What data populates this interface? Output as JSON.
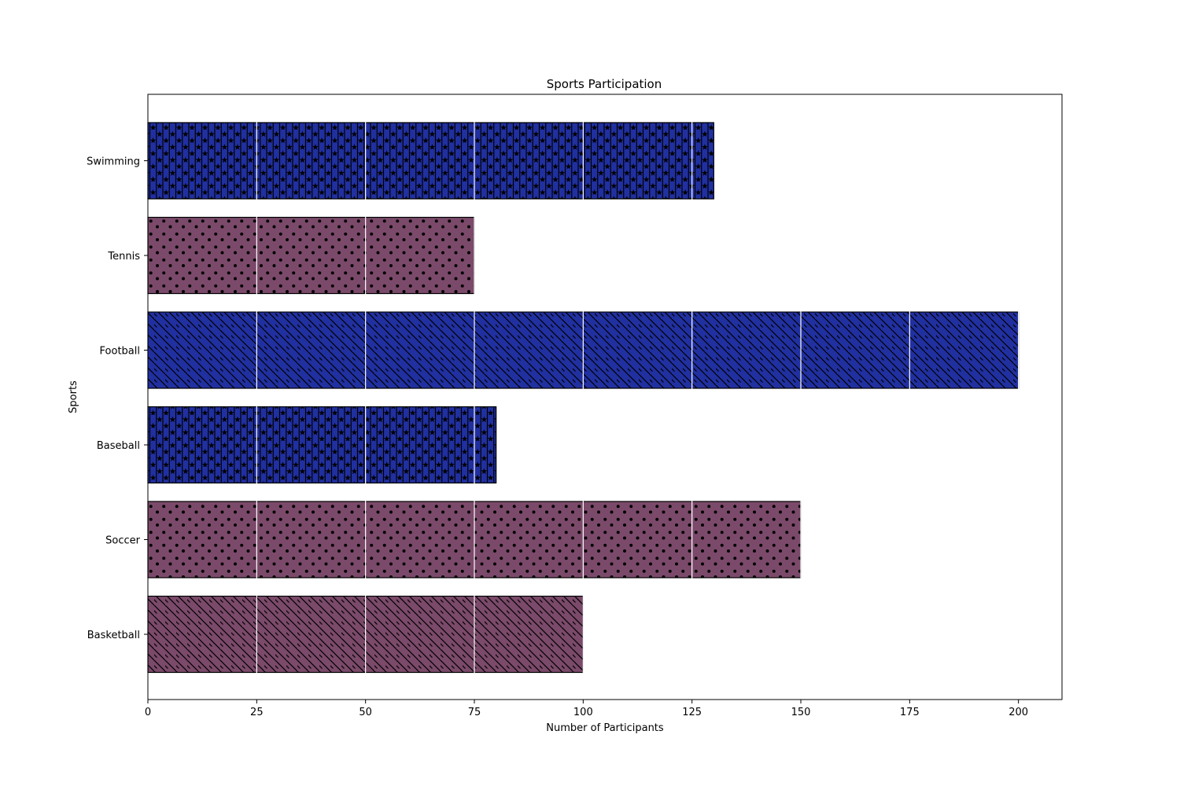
{
  "chart_data": {
    "type": "bar",
    "orientation": "horizontal",
    "title": "Sports Participation",
    "xlabel": "Number of Participants",
    "ylabel": "Sports",
    "categories": [
      "Basketball",
      "Soccer",
      "Baseball",
      "Football",
      "Tennis",
      "Swimming"
    ],
    "values": [
      100,
      150,
      80,
      200,
      75,
      130
    ],
    "bar_colors": [
      "#7b4a6a",
      "#7b4a6a",
      "#2130a0",
      "#2130a0",
      "#7b4a6a",
      "#2130a0"
    ],
    "bar_patterns": [
      "diagonal-hatch",
      "dots",
      "stars-vertical-lines",
      "diagonal-hatch",
      "dots",
      "stars-vertical-lines"
    ],
    "xlim": [
      0,
      210
    ],
    "xticks": [
      0,
      25,
      50,
      75,
      100,
      125,
      150,
      175,
      200
    ],
    "grid": "vertical-white-lines-over-bars",
    "legend": "none"
  }
}
